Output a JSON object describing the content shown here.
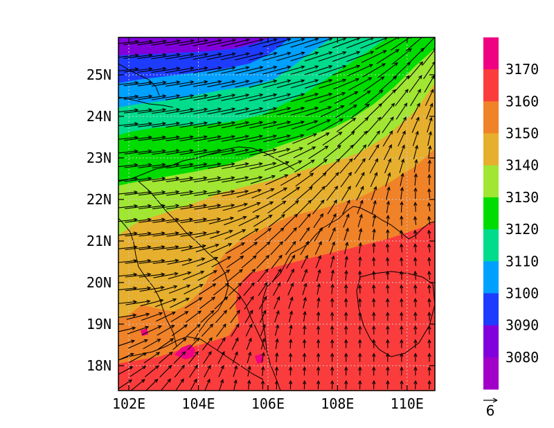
{
  "map": {
    "x_axis": {
      "range": [
        101.7,
        110.8
      ],
      "ticks": [
        {
          "value": 102,
          "label": "102E"
        },
        {
          "value": 104,
          "label": "104E"
        },
        {
          "value": 106,
          "label": "106E"
        },
        {
          "value": 108,
          "label": "108E"
        },
        {
          "value": 110,
          "label": "110E"
        }
      ]
    },
    "y_axis": {
      "range": [
        17.4,
        25.9
      ],
      "ticks": [
        {
          "value": 18,
          "label": "18N"
        },
        {
          "value": 19,
          "label": "19N"
        },
        {
          "value": 20,
          "label": "20N"
        },
        {
          "value": 21,
          "label": "21N"
        },
        {
          "value": 22,
          "label": "22N"
        },
        {
          "value": 23,
          "label": "23N"
        },
        {
          "value": 24,
          "label": "24N"
        },
        {
          "value": 25,
          "label": "25N"
        }
      ]
    },
    "grid": "dotted",
    "filled_field": "geopotential height, shaded contours",
    "wind_vectors": true,
    "reference_vector": {
      "label": "6"
    }
  },
  "colorbar": {
    "placement": "right",
    "bins": [
      {
        "color": "#a000c8"
      },
      {
        "color": "#8200dc",
        "upper": "3080"
      },
      {
        "color": "#1e3cff",
        "upper": "3090"
      },
      {
        "color": "#00a0ff",
        "upper": "3100"
      },
      {
        "color": "#00dc8c",
        "upper": "3110"
      },
      {
        "color": "#00dc00",
        "upper": "3120"
      },
      {
        "color": "#a0e632",
        "upper": "3130"
      },
      {
        "color": "#e6af2d",
        "upper": "3140"
      },
      {
        "color": "#f08228",
        "upper": "3150"
      },
      {
        "color": "#fa3c3c",
        "upper": "3160"
      },
      {
        "color": "#f00082",
        "upper": "3170"
      }
    ],
    "labels": [
      "3080",
      "3090",
      "3100",
      "3110",
      "3120",
      "3130",
      "3140",
      "3150",
      "3160",
      "3170"
    ]
  }
}
